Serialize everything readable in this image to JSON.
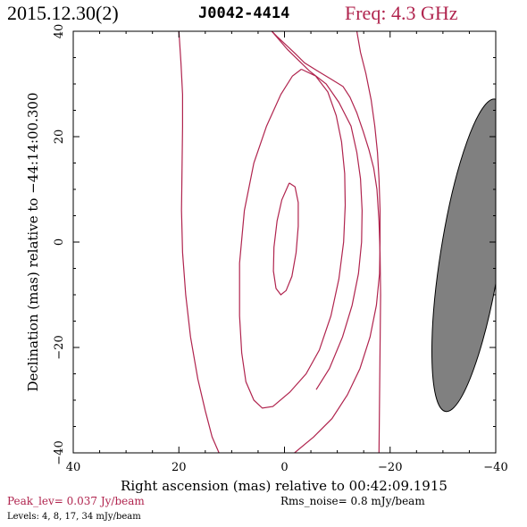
{
  "header": {
    "date": "2015.12.30(2)",
    "source": "J0042-4414",
    "freq": "Freq: 4.3 GHz"
  },
  "footer": {
    "peak": "Peak_lev= 0.037 Jy/beam",
    "rms": "Rms_noise= 0.8 mJy/beam",
    "levels": "Levels: 4, 8, 17, 34 mJy/beam"
  },
  "colors": {
    "contour": "#b0244e",
    "beam_fill": "#808080",
    "frame": "#000000"
  },
  "chart_data": {
    "type": "contour",
    "xlabel": "Right ascension (mas) relative to 00:42:09.1915",
    "ylabel": "Declination (mas) relative to −44:14:00.300",
    "xlim": [
      40,
      -40
    ],
    "ylim": [
      -40,
      40
    ],
    "xticks": [
      40,
      20,
      0,
      -20,
      -40
    ],
    "yticks": [
      -40,
      -20,
      0,
      20,
      40
    ],
    "xtick_labels": [
      "40",
      "20",
      "0",
      "−20",
      "−40"
    ],
    "ytick_labels": [
      "−40",
      "−20",
      "0",
      "20",
      "40"
    ],
    "contour_levels_mJy": [
      4,
      8,
      17,
      34
    ],
    "contours": [
      {
        "level_mJy": 4,
        "segments": [
          [
            [
              20.0,
              40.0
            ],
            [
              19.6,
              34.0
            ],
            [
              19.3,
              28.0
            ],
            [
              19.3,
              22.0
            ],
            [
              19.4,
              14.0
            ],
            [
              19.5,
              6.0
            ],
            [
              19.3,
              -2.0
            ],
            [
              18.7,
              -10.0
            ],
            [
              17.8,
              -18.0
            ],
            [
              16.4,
              -26.0
            ],
            [
              15.0,
              -32.0
            ],
            [
              13.7,
              -37.0
            ],
            [
              12.4,
              -40.0
            ]
          ],
          [
            [
              2.4,
              40.0
            ],
            [
              1.4,
              39.0
            ],
            [
              -0.2,
              37.5
            ],
            [
              -2.0,
              35.8
            ],
            [
              -3.8,
              34.0
            ],
            [
              -6.2,
              32.5
            ],
            [
              -8.7,
              31.0
            ],
            [
              -11.1,
              29.5
            ],
            [
              -12.4,
              27.5
            ],
            [
              -13.7,
              24.5
            ],
            [
              -14.9,
              21.0
            ],
            [
              -16.0,
              17.5
            ],
            [
              -16.9,
              14.0
            ],
            [
              -17.5,
              10.0
            ],
            [
              -17.9,
              4.0
            ],
            [
              -18.1,
              -2.0
            ],
            [
              -18.2,
              -10.0
            ],
            [
              -18.1,
              -20.0
            ],
            [
              -18.0,
              -30.0
            ],
            [
              -17.9,
              -40.0
            ]
          ],
          [
            [
              -13.7,
              40.0
            ],
            [
              -14.4,
              36.0
            ],
            [
              -15.4,
              32.0
            ],
            [
              -16.4,
              27.0
            ],
            [
              -17.1,
              22.0
            ],
            [
              -17.6,
              17.0
            ],
            [
              -17.9,
              12.0
            ],
            [
              -18.1,
              6.0
            ],
            [
              -18.1,
              0.0
            ],
            [
              -18.0,
              -6.0
            ],
            [
              -17.4,
              -12.0
            ],
            [
              -16.2,
              -18.0
            ],
            [
              -14.3,
              -24.0
            ],
            [
              -11.9,
              -29.0
            ],
            [
              -9.0,
              -33.5
            ],
            [
              -5.5,
              -37.0
            ],
            [
              -1.9,
              -40.0
            ]
          ]
        ]
      },
      {
        "level_mJy": 8,
        "segments": [
          [
            [
              2.4,
              40.0
            ],
            [
              -0.6,
              36.5
            ],
            [
              -4.7,
              32.5
            ],
            [
              -7.9,
              30.0
            ],
            [
              -10.3,
              26.5
            ],
            [
              -12.6,
              22.0
            ],
            [
              -13.7,
              17.0
            ],
            [
              -14.4,
              12.0
            ],
            [
              -14.7,
              6.0
            ],
            [
              -14.6,
              0.0
            ],
            [
              -14.0,
              -6.0
            ],
            [
              -12.8,
              -12.0
            ],
            [
              -11.0,
              -18.0
            ],
            [
              -8.5,
              -24.0
            ],
            [
              -6.0,
              -28.0
            ]
          ]
        ]
      },
      {
        "level_mJy": 17,
        "segments": [
          [
            [
              -3.2,
              32.8
            ],
            [
              -5.9,
              31.5
            ],
            [
              -8.2,
              28.5
            ],
            [
              -9.8,
              24.0
            ],
            [
              -10.8,
              19.0
            ],
            [
              -11.4,
              13.0
            ],
            [
              -11.5,
              7.0
            ],
            [
              -11.2,
              0.0
            ],
            [
              -10.3,
              -7.0
            ],
            [
              -8.8,
              -14.0
            ],
            [
              -6.6,
              -20.5
            ],
            [
              -4.1,
              -25.0
            ],
            [
              -1.0,
              -28.5
            ],
            [
              2.2,
              -31.2
            ],
            [
              4.2,
              -31.5
            ],
            [
              5.8,
              -30.0
            ],
            [
              7.3,
              -26.5
            ],
            [
              8.1,
              -21.0
            ],
            [
              8.5,
              -14.0
            ],
            [
              8.5,
              -4.0
            ],
            [
              7.6,
              6.0
            ],
            [
              5.8,
              15.0
            ],
            [
              3.4,
              22.0
            ],
            [
              0.7,
              28.0
            ],
            [
              -1.5,
              31.5
            ],
            [
              -3.2,
              32.8
            ]
          ]
        ]
      },
      {
        "level_mJy": 34,
        "segments": [
          [
            [
              -0.9,
              11.2
            ],
            [
              -2.0,
              10.5
            ],
            [
              -2.6,
              7.5
            ],
            [
              -2.6,
              3.0
            ],
            [
              -2.2,
              -2.0
            ],
            [
              -1.4,
              -6.5
            ],
            [
              -0.3,
              -9.2
            ],
            [
              0.7,
              -10.0
            ],
            [
              1.6,
              -8.8
            ],
            [
              2.1,
              -5.5
            ],
            [
              2.0,
              -1.0
            ],
            [
              1.4,
              4.0
            ],
            [
              0.5,
              8.0
            ],
            [
              -0.9,
              11.2
            ]
          ]
        ]
      }
    ],
    "beam": {
      "center": [
        -35.2,
        -2.5
      ],
      "major_axis_mas": 60,
      "minor_axis_mas": 11.3,
      "position_angle_deg": -9
    }
  }
}
